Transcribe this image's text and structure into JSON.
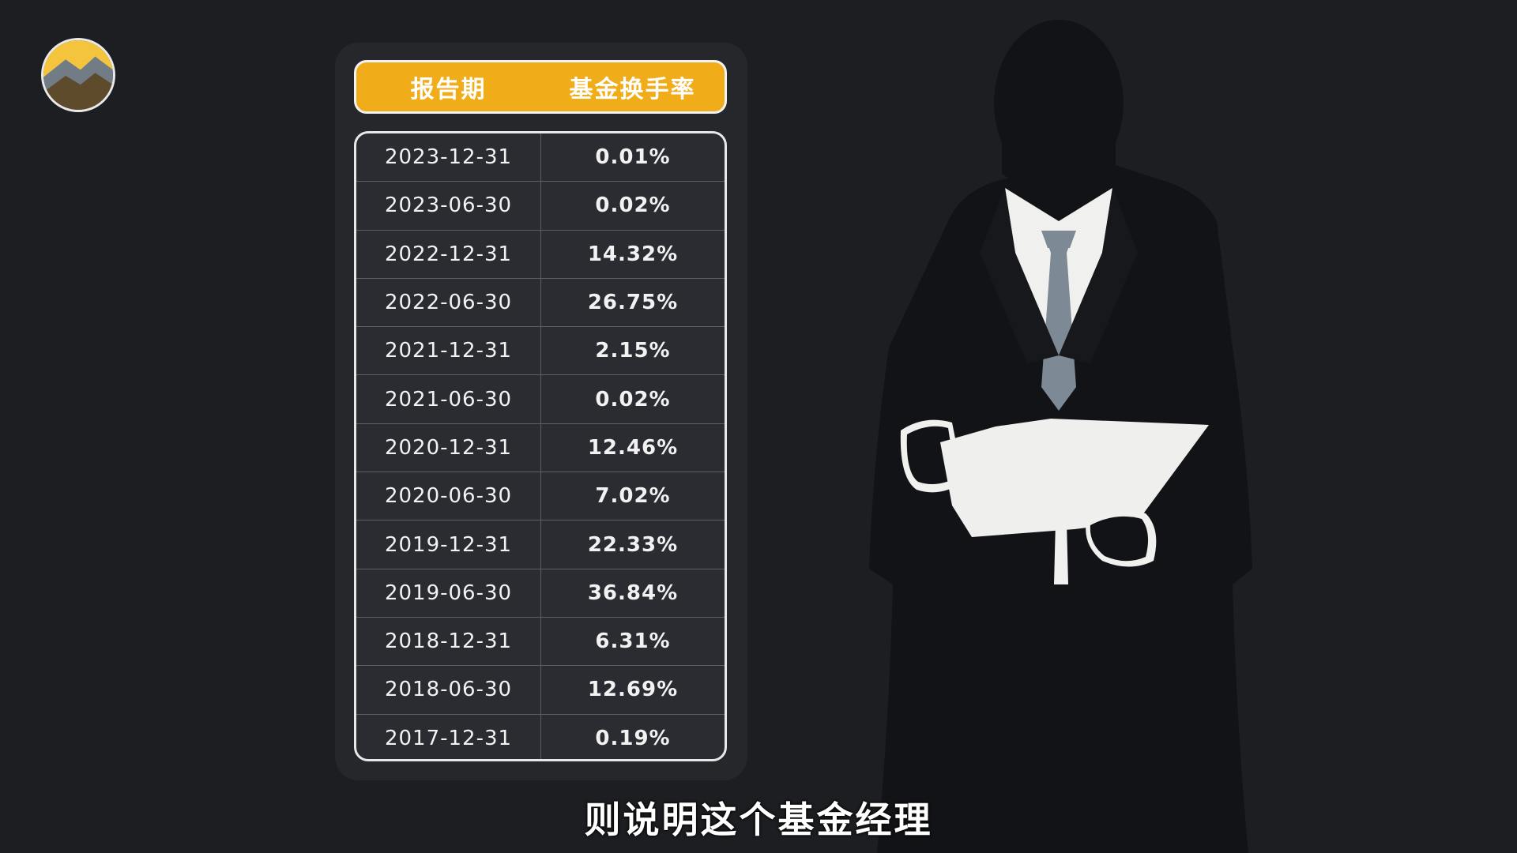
{
  "table": {
    "headers": [
      "报告期",
      "基金换手率"
    ],
    "rows": [
      {
        "date": "2023-12-31",
        "rate": "0.01%"
      },
      {
        "date": "2023-06-30",
        "rate": "0.02%"
      },
      {
        "date": "2022-12-31",
        "rate": "14.32%"
      },
      {
        "date": "2022-06-30",
        "rate": "26.75%"
      },
      {
        "date": "2021-12-31",
        "rate": "2.15%"
      },
      {
        "date": "2021-06-30",
        "rate": "0.02%"
      },
      {
        "date": "2020-12-31",
        "rate": "12.46%"
      },
      {
        "date": "2020-06-30",
        "rate": "7.02%"
      },
      {
        "date": "2019-12-31",
        "rate": "22.33%"
      },
      {
        "date": "2019-06-30",
        "rate": "36.84%"
      },
      {
        "date": "2018-12-31",
        "rate": "6.31%"
      },
      {
        "date": "2018-06-30",
        "rate": "12.69%"
      },
      {
        "date": "2017-12-31",
        "rate": "0.19%"
      }
    ]
  },
  "subtitle": "则说明这个基金经理",
  "colors": {
    "header_bg": "#f0ad19",
    "background": "#1d1e22",
    "tie": "#7e8996"
  }
}
